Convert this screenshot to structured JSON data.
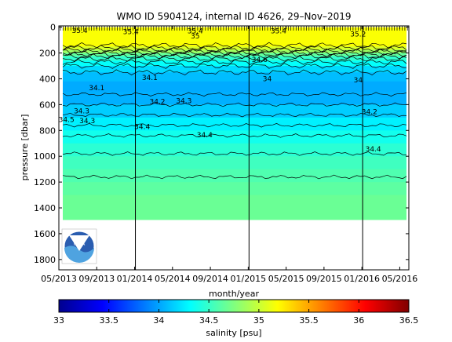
{
  "chart_data": {
    "type": "heatmap",
    "title": "WMO ID 5904124, internal ID 4626, 29–Nov–2019",
    "xlabel": "month/year",
    "ylabel": "pressure [dbar]",
    "x_ticks": [
      "05/2013",
      "09/2013",
      "01/2014",
      "05/2014",
      "09/2014",
      "01/2015",
      "05/2015",
      "09/2015",
      "01/2016",
      "05/2016"
    ],
    "y_ticks": [
      0,
      200,
      400,
      600,
      800,
      1000,
      1200,
      1400,
      1600,
      1800
    ],
    "ylim": [
      1880,
      -10
    ],
    "y_reversed": true,
    "xlim_index": [
      0,
      9.24
    ],
    "data_max_pressure": 1490,
    "year_lines": [
      "01/2014",
      "01/2015",
      "01/2016"
    ],
    "colorbar": {
      "label": "salinity [psu]",
      "min": 33,
      "max": 36.5,
      "ticks": [
        "33",
        "33.5",
        "34",
        "34.5",
        "35",
        "35.5",
        "36",
        "36.5"
      ],
      "colormap": "jet"
    },
    "salinity_profile": {
      "pressure": [
        0,
        150,
        175,
        200,
        225,
        260,
        300,
        350,
        420,
        500,
        600,
        700,
        800,
        900,
        1000,
        1100,
        1200,
        1300,
        1490
      ],
      "salinity": [
        35.2,
        35.15,
        34.95,
        34.75,
        34.55,
        34.4,
        34.25,
        34.12,
        34.05,
        34.0,
        34.08,
        34.2,
        34.33,
        34.42,
        34.5,
        34.56,
        34.61,
        34.65,
        34.7
      ]
    },
    "contour_labels": [
      {
        "text": "35.4",
        "x": 0.55,
        "p": 25
      },
      {
        "text": "35.4",
        "x": 1.9,
        "p": 35
      },
      {
        "text": "35.4",
        "x": 3.6,
        "p": 30
      },
      {
        "text": "35.4",
        "x": 5.8,
        "p": 30
      },
      {
        "text": "35.2",
        "x": 7.9,
        "p": 55
      },
      {
        "text": "35",
        "x": 3.6,
        "p": 70
      },
      {
        "text": "34.6",
        "x": 5.3,
        "p": 250
      },
      {
        "text": "34.1",
        "x": 2.4,
        "p": 390
      },
      {
        "text": "34.1",
        "x": 1.0,
        "p": 470
      },
      {
        "text": "34",
        "x": 5.5,
        "p": 400
      },
      {
        "text": "34",
        "x": 7.9,
        "p": 410
      },
      {
        "text": "34.2",
        "x": 2.6,
        "p": 575
      },
      {
        "text": "34.2",
        "x": 8.2,
        "p": 655
      },
      {
        "text": "34.3",
        "x": 3.3,
        "p": 570
      },
      {
        "text": "34.3",
        "x": 0.6,
        "p": 650
      },
      {
        "text": "34.3",
        "x": 0.75,
        "p": 725
      },
      {
        "text": "34.4",
        "x": 2.2,
        "p": 770
      },
      {
        "text": "34.4",
        "x": 3.85,
        "p": 835
      },
      {
        "text": "34.4",
        "x": 8.3,
        "p": 945
      },
      {
        "text": "34.5",
        "x": 0.2,
        "p": 715
      }
    ],
    "logo": "NOAA"
  }
}
